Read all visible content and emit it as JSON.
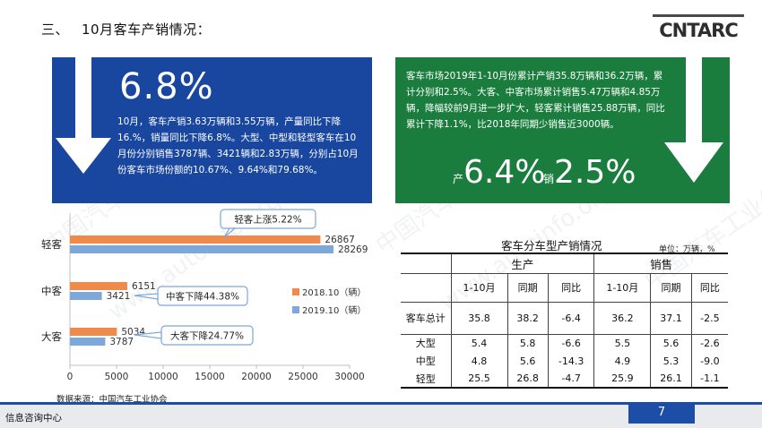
{
  "page": {
    "section_number": "三、",
    "title": "10月客车产销情况：",
    "logo_text": "CNTARC",
    "page_number": "7",
    "footer_text": "信息咨询中心",
    "source_note": "数据来源：中国汽车工业协会",
    "watermark": [
      "中国汽车工业信息网",
      "www.autoinfo.org.cn"
    ]
  },
  "blue_card": {
    "headline": "6.8%",
    "text": "10月，客车产销3.63万辆和3.55万辆，产量同比下降16.%，销量同比下降6.8%。大型、中型和轻型客车在10月份分别销售3787辆、3421辆和2.83万辆，分别占10月份客车市场份额的10.67%、9.64%和79.68%。",
    "color": "#1947a0"
  },
  "green_card": {
    "text": "客车市场2019年1-10月份累计产销35.8万辆和36.2万辆，累计分别和2.5%。大客、中客市场累计销售5.47万辆和4.85万辆，降幅较前9月进一步扩大，轻客累计销售25.88万辆，同比累计下降1.1%，比2018年同期少销售近3000辆。",
    "prod_label": "产",
    "prod_value": "6.4%",
    "sales_label": "销",
    "sales_value": "2.5%",
    "color": "#1a7d3e"
  },
  "chart_data": {
    "type": "bar",
    "orientation": "horizontal",
    "categories": [
      "轻客",
      "中客",
      "大客"
    ],
    "series": [
      {
        "name": "2018.10（辆）",
        "values": [
          26867,
          6151,
          5034
        ],
        "color": "#f08a4b"
      },
      {
        "name": "2019.10（辆）",
        "values": [
          28269,
          3421,
          3787
        ],
        "color": "#7ea7da"
      }
    ],
    "xlim": [
      0,
      30000
    ],
    "xticks": [
      0,
      5000,
      10000,
      15000,
      20000,
      25000,
      30000
    ],
    "callouts": [
      "轻客上涨5.22%",
      "中客下降44.38%",
      "大客下降24.77%"
    ],
    "legend_position": "right",
    "grid": false
  },
  "table": {
    "title": "客车分车型产销情况",
    "unit": "单位：万辆，%",
    "groups": [
      "生产",
      "销售"
    ],
    "columns": [
      "1-10月",
      "同期",
      "同比",
      "1-10月",
      "同期",
      "同比"
    ],
    "rows": [
      {
        "label": "客车总计",
        "values": [
          "35.8",
          "38.2",
          "-6.4",
          "36.2",
          "37.1",
          "-2.5"
        ]
      },
      {
        "label": "大型",
        "values": [
          "5.4",
          "5.8",
          "-6.6",
          "5.5",
          "5.6",
          "-2.6"
        ]
      },
      {
        "label": "中型",
        "values": [
          "4.8",
          "5.6",
          "-14.3",
          "4.9",
          "5.3",
          "-9.0"
        ]
      },
      {
        "label": "轻型",
        "values": [
          "25.5",
          "26.8",
          "-4.7",
          "25.9",
          "26.1",
          "-1.1"
        ]
      }
    ]
  }
}
